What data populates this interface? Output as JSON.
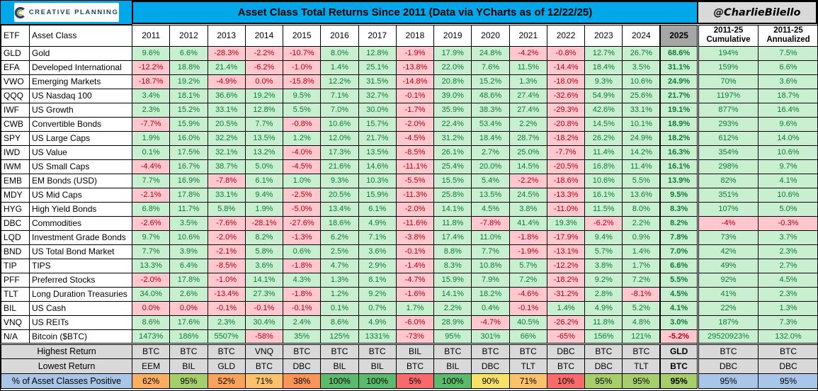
{
  "header": {
    "logo_text": "CREATIVE PLANNING",
    "logo_icon": "creative-planning-c-icon",
    "handle": "@CharlieBilello"
  },
  "chart_data": {
    "type": "table",
    "title": "Asset Class Total Returns Since 2011 (Data via YCharts as of 12/22/25)",
    "columns": {
      "etf": "ETF",
      "asset_class": "Asset Class",
      "years": [
        "2011",
        "2012",
        "2013",
        "2014",
        "2015",
        "2016",
        "2017",
        "2018",
        "2019",
        "2020",
        "2021",
        "2022",
        "2023",
        "2024",
        "2025"
      ],
      "cumulative_line1": "2011-25",
      "cumulative_line2": "Cumulative",
      "annualized_line1": "2011-25",
      "annualized_line2": "Annualized"
    },
    "rows": [
      {
        "etf": "GLD",
        "name": "Gold",
        "values": [
          "9.6%",
          "6.6%",
          "-28.3%",
          "-2.2%",
          "-10.7%",
          "8.0%",
          "12.8%",
          "-1.9%",
          "17.9%",
          "24.8%",
          "-4.2%",
          "-0.8%",
          "12.7%",
          "26.7%",
          "68.6%"
        ],
        "cum": "194%",
        "ann": "7.5%"
      },
      {
        "etf": "EFA",
        "name": "Developed International",
        "values": [
          "-12.2%",
          "18.8%",
          "21.4%",
          "-6.2%",
          "-1.0%",
          "1.4%",
          "25.1%",
          "-13.8%",
          "22.0%",
          "7.6%",
          "11.5%",
          "-14.4%",
          "18.4%",
          "3.5%",
          "31.1%"
        ],
        "cum": "159%",
        "ann": "6.6%"
      },
      {
        "etf": "VWO",
        "name": "Emerging Markets",
        "values": [
          "-18.7%",
          "19.2%",
          "-4.9%",
          "0.0%",
          "-15.8%",
          "12.2%",
          "31.5%",
          "-14.8%",
          "20.8%",
          "15.2%",
          "1.3%",
          "-18.0%",
          "9.3%",
          "10.6%",
          "24.9%"
        ],
        "cum": "70%",
        "ann": "3.6%"
      },
      {
        "etf": "QQQ",
        "name": "US Nasdaq 100",
        "values": [
          "3.4%",
          "18.1%",
          "36.6%",
          "19.2%",
          "9.5%",
          "7.1%",
          "32.7%",
          "-0.1%",
          "39.0%",
          "48.6%",
          "27.4%",
          "-32.6%",
          "54.9%",
          "25.6%",
          "21.7%"
        ],
        "cum": "1197%",
        "ann": "18.7%"
      },
      {
        "etf": "IWF",
        "name": "US Growth",
        "values": [
          "2.3%",
          "15.2%",
          "33.1%",
          "12.8%",
          "5.5%",
          "7.0%",
          "30.0%",
          "-1.7%",
          "35.9%",
          "38.3%",
          "27.4%",
          "-29.3%",
          "42.6%",
          "33.1%",
          "19.1%"
        ],
        "cum": "877%",
        "ann": "16.4%"
      },
      {
        "etf": "CWB",
        "name": "Convertible Bonds",
        "values": [
          "-7.7%",
          "15.9%",
          "20.5%",
          "7.7%",
          "-0.8%",
          "10.6%",
          "15.7%",
          "-2.0%",
          "22.4%",
          "53.4%",
          "2.2%",
          "-20.8%",
          "14.5%",
          "10.1%",
          "18.9%"
        ],
        "cum": "293%",
        "ann": "9.6%"
      },
      {
        "etf": "SPY",
        "name": "US Large Caps",
        "values": [
          "1.9%",
          "16.0%",
          "32.2%",
          "13.5%",
          "1.2%",
          "12.0%",
          "21.7%",
          "-4.5%",
          "31.2%",
          "18.4%",
          "28.7%",
          "-18.2%",
          "26.2%",
          "24.9%",
          "18.2%"
        ],
        "cum": "612%",
        "ann": "14.0%"
      },
      {
        "etf": "IWD",
        "name": "US Value",
        "values": [
          "0.1%",
          "17.5%",
          "32.1%",
          "13.2%",
          "-4.0%",
          "17.3%",
          "13.5%",
          "-8.5%",
          "26.1%",
          "2.7%",
          "25.0%",
          "-7.7%",
          "11.4%",
          "14.2%",
          "16.3%"
        ],
        "cum": "354%",
        "ann": "10.6%"
      },
      {
        "etf": "IWM",
        "name": "US Small Caps",
        "values": [
          "-4.4%",
          "16.7%",
          "38.7%",
          "5.0%",
          "-4.5%",
          "21.6%",
          "14.6%",
          "-11.1%",
          "25.4%",
          "20.0%",
          "14.5%",
          "-20.5%",
          "16.8%",
          "11.4%",
          "16.1%"
        ],
        "cum": "298%",
        "ann": "9.7%"
      },
      {
        "etf": "EMB",
        "name": "EM Bonds (USD)",
        "values": [
          "7.7%",
          "16.9%",
          "-7.8%",
          "6.1%",
          "1.0%",
          "9.3%",
          "10.3%",
          "-5.5%",
          "15.5%",
          "5.4%",
          "-2.2%",
          "-18.6%",
          "10.6%",
          "5.5%",
          "13.9%"
        ],
        "cum": "82%",
        "ann": "4.1%"
      },
      {
        "etf": "MDY",
        "name": "US Mid Caps",
        "values": [
          "-2.1%",
          "17.8%",
          "33.1%",
          "9.4%",
          "-2.5%",
          "20.5%",
          "15.9%",
          "-11.3%",
          "25.8%",
          "13.5%",
          "24.5%",
          "-13.3%",
          "16.1%",
          "13.6%",
          "9.5%"
        ],
        "cum": "351%",
        "ann": "10.6%"
      },
      {
        "etf": "HYG",
        "name": "High Yield Bonds",
        "values": [
          "6.8%",
          "11.7%",
          "5.8%",
          "1.9%",
          "-5.0%",
          "13.4%",
          "6.1%",
          "-2.0%",
          "14.1%",
          "4.5%",
          "3.8%",
          "-11.0%",
          "11.5%",
          "8.0%",
          "8.3%"
        ],
        "cum": "107%",
        "ann": "5.0%"
      },
      {
        "etf": "DBC",
        "name": "Commodities",
        "values": [
          "-2.6%",
          "3.5%",
          "-7.6%",
          "-28.1%",
          "-27.6%",
          "18.6%",
          "4.9%",
          "-11.6%",
          "11.8%",
          "-7.8%",
          "41.4%",
          "19.3%",
          "-6.2%",
          "2.2%",
          "8.2%"
        ],
        "cum": "-4%",
        "ann": "-0.3%"
      },
      {
        "etf": "LQD",
        "name": "Investment Grade Bonds",
        "values": [
          "9.7%",
          "10.6%",
          "-2.0%",
          "8.2%",
          "-1.3%",
          "6.2%",
          "7.1%",
          "-3.8%",
          "17.4%",
          "11.0%",
          "-1.8%",
          "-17.9%",
          "9.4%",
          "0.9%",
          "7.8%"
        ],
        "cum": "73%",
        "ann": "3.7%"
      },
      {
        "etf": "BND",
        "name": "US Total Bond Market",
        "values": [
          "7.7%",
          "3.9%",
          "-2.1%",
          "5.8%",
          "0.6%",
          "2.5%",
          "3.6%",
          "-0.1%",
          "8.8%",
          "7.7%",
          "-1.9%",
          "-13.1%",
          "5.7%",
          "1.4%",
          "7.0%"
        ],
        "cum": "42%",
        "ann": "2.3%"
      },
      {
        "etf": "TIP",
        "name": "TIPS",
        "values": [
          "13.3%",
          "6.4%",
          "-8.5%",
          "3.6%",
          "-1.8%",
          "4.7%",
          "2.9%",
          "-1.4%",
          "8.3%",
          "10.8%",
          "5.7%",
          "-12.2%",
          "3.8%",
          "1.7%",
          "6.6%"
        ],
        "cum": "49%",
        "ann": "2.7%"
      },
      {
        "etf": "PFF",
        "name": "Preferred Stocks",
        "values": [
          "-2.0%",
          "17.8%",
          "-1.0%",
          "14.1%",
          "4.3%",
          "1.3%",
          "8.1%",
          "-4.7%",
          "15.9%",
          "7.9%",
          "7.2%",
          "-18.2%",
          "9.2%",
          "7.2%",
          "5.5%"
        ],
        "cum": "92%",
        "ann": "4.5%"
      },
      {
        "etf": "TLT",
        "name": "Long Duration Treasuries",
        "values": [
          "34.0%",
          "2.6%",
          "-13.4%",
          "27.3%",
          "-1.8%",
          "1.2%",
          "9.2%",
          "-1.6%",
          "14.1%",
          "18.2%",
          "-4.6%",
          "-31.2%",
          "2.8%",
          "-8.1%",
          "4.5%"
        ],
        "cum": "41%",
        "ann": "2.3%"
      },
      {
        "etf": "BIL",
        "name": "US Cash",
        "values": [
          "0.0%",
          "0.0%",
          "-0.1%",
          "-0.1%",
          "-0.1%",
          "0.1%",
          "0.7%",
          "1.7%",
          "2.2%",
          "0.4%",
          "-0.1%",
          "1.4%",
          "4.9%",
          "5.2%",
          "4.1%"
        ],
        "cum": "22%",
        "ann": "1.3%"
      },
      {
        "etf": "VNQ",
        "name": "US REITs",
        "values": [
          "8.6%",
          "17.6%",
          "2.3%",
          "30.4%",
          "2.4%",
          "8.6%",
          "4.9%",
          "-6.0%",
          "28.9%",
          "-4.7%",
          "40.5%",
          "-26.2%",
          "11.8%",
          "4.8%",
          "3.0%"
        ],
        "cum": "187%",
        "ann": "7.3%"
      },
      {
        "etf": "N/A",
        "name": "Bitcoin ($BTC)",
        "values": [
          "1473%",
          "186%",
          "5507%",
          "-58%",
          "35%",
          "125%",
          "1331%",
          "-73%",
          "95%",
          "301%",
          "66%",
          "-65%",
          "156%",
          "121%",
          "-5.2%"
        ],
        "cum": "29520923%",
        "ann": "132.0%"
      }
    ],
    "footer": {
      "highest": {
        "label": "Highest Return",
        "values": [
          "BTC",
          "BTC",
          "BTC",
          "VNQ",
          "BTC",
          "BTC",
          "BTC",
          "BIL",
          "BTC",
          "BTC",
          "BTC",
          "DBC",
          "BTC",
          "BTC",
          "GLD"
        ],
        "cum": "BTC",
        "ann": "BTC"
      },
      "lowest": {
        "label": "Lowest Return",
        "values": [
          "EEM",
          "BIL",
          "GLD",
          "BTC",
          "DBC",
          "BIL",
          "BIL",
          "BTC",
          "BIL",
          "DBC",
          "TLT",
          "BTC",
          "DBC",
          "TLT",
          "BTC"
        ],
        "cum": "DBC",
        "ann": "DBC"
      },
      "pct_positive": {
        "label": "% of Asset Classes Positive",
        "values": [
          "62%",
          "95%",
          "52%",
          "71%",
          "38%",
          "100%",
          "100%",
          "5%",
          "100%",
          "90%",
          "71%",
          "10%",
          "95%",
          "95%",
          "95%"
        ],
        "cell_colors": [
          "#F9AE61",
          "#A6CF6C",
          "#F9A25A",
          "#FBC16B",
          "#F99558",
          "#5BBB6D",
          "#5BBB6D",
          "#F8696B",
          "#5BBB6D",
          "#F8E169",
          "#FBC16B",
          "#F76C6B",
          "#A6CF6C",
          "#A6CF6C",
          "#A6CF6C"
        ],
        "cum": "95%",
        "ann": "95%"
      }
    },
    "layout": {
      "positive_bg": "#C8EFD0",
      "positive_text": "#0E7A33",
      "negative_bg": "#FFC7CE",
      "negative_text": "#B3000C",
      "title_bar_bg": "#00A7E9",
      "handle_bg": "#D9D9D9",
      "col2025_header_bg": "#A6A6A6",
      "footer_label_bg": "#D9D9D9",
      "pct_label_bg": "#A9C5E8"
    }
  }
}
